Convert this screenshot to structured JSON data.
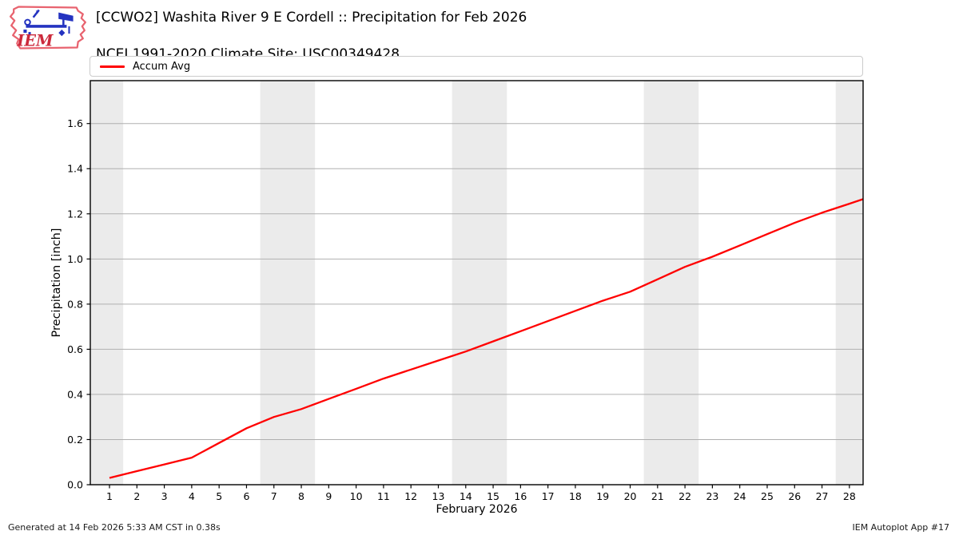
{
  "header": {
    "title_line1": "[CCWO2] Washita River 9 E Cordell :: Precipitation for Feb 2026",
    "title_line2": "NCEI 1991-2020 Climate Site: USC00349428",
    "logo_text": "IEM"
  },
  "legend": {
    "items": [
      {
        "label": "Accum Avg",
        "color": "#ff0000"
      }
    ]
  },
  "footer": {
    "left": "Generated at 14 Feb 2026 5:33 AM CST in 0.38s",
    "right": "IEM Autoplot App #17"
  },
  "chart_data": {
    "type": "line",
    "title": "[CCWO2] Washita River 9 E Cordell :: Precipitation for Feb 2026",
    "subtitle": "NCEI 1991-2020 Climate Site: USC00349428",
    "xlabel": "February 2026",
    "ylabel": "Precipitation [inch]",
    "xlim": [
      0.3,
      28.5
    ],
    "ylim": [
      0,
      1.79
    ],
    "xticks": [
      1,
      2,
      3,
      4,
      5,
      6,
      7,
      8,
      9,
      10,
      11,
      12,
      13,
      14,
      15,
      16,
      17,
      18,
      19,
      20,
      21,
      22,
      23,
      24,
      25,
      26,
      27,
      28
    ],
    "yticks": [
      0.0,
      0.2,
      0.4,
      0.6,
      0.8,
      1.0,
      1.2,
      1.4,
      1.6
    ],
    "grid": "horizontal",
    "legend_position": "top",
    "weekend_bands": [
      [
        0.3,
        1.5
      ],
      [
        6.5,
        8.5
      ],
      [
        13.5,
        15.5
      ],
      [
        20.5,
        22.5
      ],
      [
        27.5,
        28.5
      ]
    ],
    "band_color": "#ebebeb",
    "grid_color": "#b0b0b0",
    "spine_color": "#000000",
    "series": [
      {
        "name": "Accum Avg",
        "color": "#ff0000",
        "x": [
          1,
          2,
          3,
          4,
          5,
          6,
          7,
          8,
          9,
          10,
          11,
          12,
          13,
          14,
          15,
          16,
          17,
          18,
          19,
          20,
          21,
          22,
          23,
          24,
          25,
          26,
          27,
          28,
          28.5
        ],
        "y": [
          0.03,
          0.06,
          0.09,
          0.12,
          0.185,
          0.25,
          0.3,
          0.335,
          0.38,
          0.425,
          0.47,
          0.51,
          0.55,
          0.59,
          0.635,
          0.68,
          0.725,
          0.77,
          0.815,
          0.855,
          0.91,
          0.965,
          1.01,
          1.06,
          1.11,
          1.16,
          1.205,
          1.245,
          1.265
        ]
      }
    ]
  }
}
